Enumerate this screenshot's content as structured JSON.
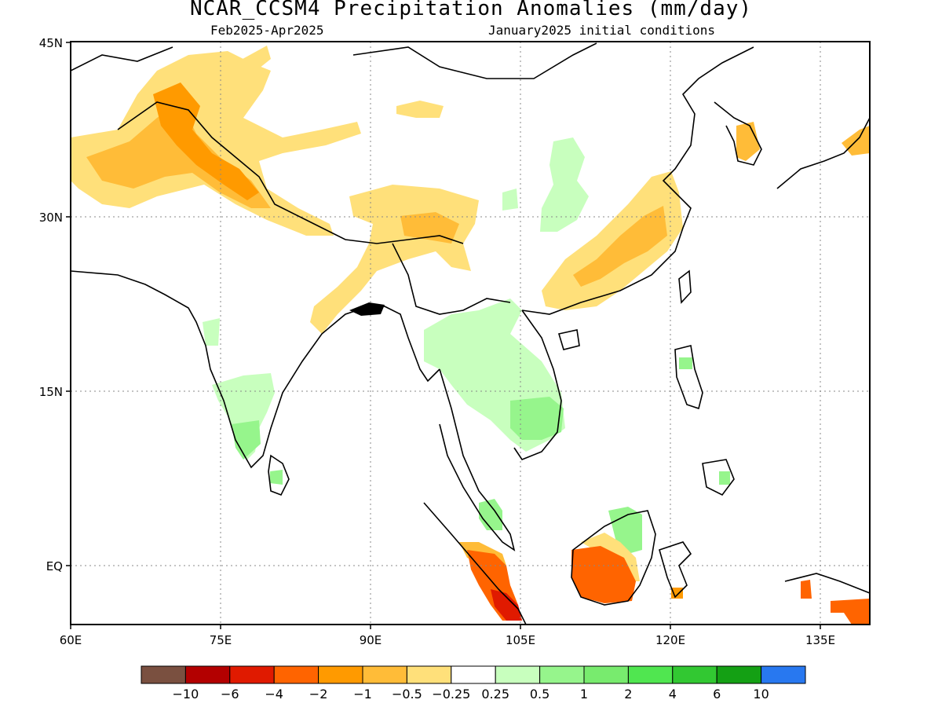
{
  "title": "NCAR_CCSM4 Precipitation Anomalies (mm/day)",
  "subtitle_left": "Feb2025-Apr2025",
  "subtitle_right": "January2025 initial conditions",
  "map": {
    "lon_range": [
      60,
      140
    ],
    "lat_range": [
      -5.5,
      46
    ],
    "x_ticks": [
      "60E",
      "75E",
      "90E",
      "105E",
      "120E",
      "135E"
    ],
    "y_ticks": [
      "45N",
      "30N",
      "15N",
      "EQ"
    ],
    "gridlines": "dotted"
  },
  "colorbar": {
    "colors": [
      "#7a5040",
      "#b30000",
      "#e01a00",
      "#ff6400",
      "#ff9a00",
      "#ffbc38",
      "#ffe07a",
      "#ffffff",
      "#c8ffbe",
      "#96f58c",
      "#78eb6e",
      "#50e650",
      "#32c832",
      "#14a014",
      "#2878f0"
    ],
    "labels": [
      "−10",
      "−6",
      "−4",
      "−2",
      "−1",
      "−0.5",
      "−0.25",
      "0.25",
      "0.5",
      "1",
      "2",
      "4",
      "6",
      "10"
    ]
  }
}
